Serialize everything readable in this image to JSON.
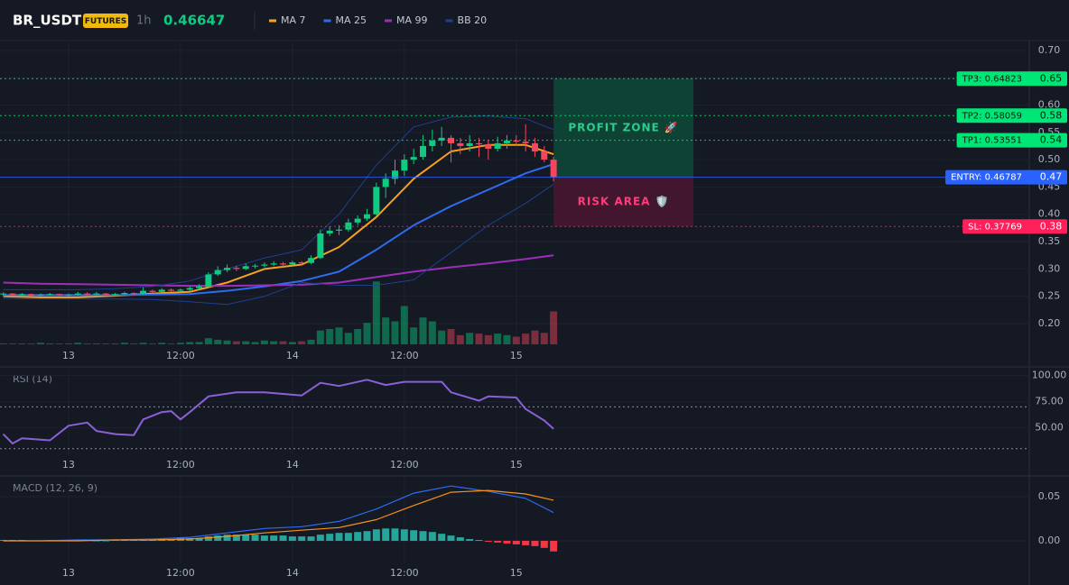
{
  "header": {
    "symbol": "BR_USDT",
    "badge": "FUTURES",
    "interval": "1h",
    "price": 0.46647
  },
  "chart_data": [
    {
      "type": "candlestick",
      "x": [
        -7,
        -6,
        -5,
        -4,
        -3,
        -2,
        -1,
        0,
        1,
        2,
        3,
        4,
        5,
        6,
        7,
        8,
        9,
        10,
        11,
        12,
        13,
        14,
        15,
        16,
        17,
        18,
        19,
        20,
        21,
        22,
        23,
        24,
        25,
        26,
        27,
        28,
        29,
        30,
        31,
        32,
        33,
        34,
        35,
        36,
        37,
        38,
        39,
        40,
        41,
        42,
        43,
        44,
        45,
        46,
        47,
        48,
        49,
        50,
        51,
        52
      ],
      "ohlc": [
        [
          0.254,
          0.257,
          0.251,
          0.255
        ],
        [
          0.255,
          0.256,
          0.25,
          0.252
        ],
        [
          0.252,
          0.256,
          0.25,
          0.254
        ],
        [
          0.254,
          0.255,
          0.249,
          0.251
        ],
        [
          0.251,
          0.255,
          0.25,
          0.253
        ],
        [
          0.253,
          0.256,
          0.251,
          0.254
        ],
        [
          0.254,
          0.255,
          0.25,
          0.252
        ],
        [
          0.252,
          0.255,
          0.25,
          0.253
        ],
        [
          0.253,
          0.258,
          0.251,
          0.255
        ],
        [
          0.255,
          0.257,
          0.252,
          0.254
        ],
        [
          0.254,
          0.258,
          0.252,
          0.255
        ],
        [
          0.255,
          0.256,
          0.251,
          0.253
        ],
        [
          0.253,
          0.256,
          0.251,
          0.254
        ],
        [
          0.254,
          0.258,
          0.252,
          0.256
        ],
        [
          0.256,
          0.257,
          0.252,
          0.254
        ],
        [
          0.254,
          0.266,
          0.253,
          0.26
        ],
        [
          0.26,
          0.262,
          0.256,
          0.258
        ],
        [
          0.258,
          0.265,
          0.257,
          0.262
        ],
        [
          0.262,
          0.264,
          0.258,
          0.26
        ],
        [
          0.26,
          0.264,
          0.258,
          0.262
        ],
        [
          0.262,
          0.268,
          0.26,
          0.265
        ],
        [
          0.265,
          0.272,
          0.262,
          0.268
        ],
        [
          0.268,
          0.294,
          0.266,
          0.29
        ],
        [
          0.29,
          0.305,
          0.287,
          0.298
        ],
        [
          0.298,
          0.308,
          0.294,
          0.302
        ],
        [
          0.302,
          0.306,
          0.296,
          0.3
        ],
        [
          0.3,
          0.31,
          0.298,
          0.305
        ],
        [
          0.305,
          0.309,
          0.301,
          0.306
        ],
        [
          0.306,
          0.312,
          0.303,
          0.308
        ],
        [
          0.308,
          0.314,
          0.305,
          0.31
        ],
        [
          0.31,
          0.313,
          0.304,
          0.308
        ],
        [
          0.308,
          0.315,
          0.306,
          0.312
        ],
        [
          0.312,
          0.314,
          0.307,
          0.311
        ],
        [
          0.311,
          0.325,
          0.309,
          0.32
        ],
        [
          0.32,
          0.372,
          0.318,
          0.365
        ],
        [
          0.365,
          0.378,
          0.36,
          0.37
        ],
        [
          0.37,
          0.38,
          0.362,
          0.372
        ],
        [
          0.372,
          0.392,
          0.368,
          0.385
        ],
        [
          0.385,
          0.398,
          0.38,
          0.392
        ],
        [
          0.392,
          0.41,
          0.388,
          0.4
        ],
        [
          0.4,
          0.458,
          0.398,
          0.45
        ],
        [
          0.45,
          0.475,
          0.43,
          0.465
        ],
        [
          0.465,
          0.5,
          0.455,
          0.48
        ],
        [
          0.48,
          0.51,
          0.47,
          0.5
        ],
        [
          0.5,
          0.52,
          0.492,
          0.505
        ],
        [
          0.505,
          0.545,
          0.5,
          0.525
        ],
        [
          0.525,
          0.555,
          0.515,
          0.535
        ],
        [
          0.535,
          0.56,
          0.525,
          0.54
        ],
        [
          0.54,
          0.545,
          0.495,
          0.53
        ],
        [
          0.53,
          0.54,
          0.51,
          0.525
        ],
        [
          0.525,
          0.545,
          0.515,
          0.53
        ],
        [
          0.53,
          0.54,
          0.505,
          0.528
        ],
        [
          0.528,
          0.535,
          0.5,
          0.52
        ],
        [
          0.52,
          0.542,
          0.515,
          0.53
        ],
        [
          0.53,
          0.545,
          0.52,
          0.535
        ],
        [
          0.535,
          0.545,
          0.525,
          0.533
        ],
        [
          0.533,
          0.565,
          0.515,
          0.53
        ],
        [
          0.53,
          0.54,
          0.505,
          0.515
        ],
        [
          0.515,
          0.525,
          0.495,
          0.5
        ],
        [
          0.5,
          0.505,
          0.46,
          0.468
        ]
      ],
      "volume": [
        1,
        1,
        1,
        1,
        2,
        1,
        1,
        1,
        2,
        1,
        1,
        1,
        1,
        2,
        1,
        2,
        1,
        2,
        1,
        2,
        3,
        3,
        8,
        6,
        5,
        4,
        4,
        3,
        5,
        4,
        4,
        3,
        4,
        6,
        18,
        20,
        22,
        15,
        20,
        28,
        82,
        35,
        30,
        50,
        22,
        35,
        30,
        18,
        20,
        12,
        15,
        14,
        12,
        14,
        12,
        10,
        14,
        18,
        15,
        43
      ],
      "vlim": [
        0,
        100
      ],
      "up_color": "#0ecb81",
      "down_color": "#f6465d",
      "lines": {
        "x": [
          -7,
          -3,
          1,
          5,
          9,
          13,
          17,
          21,
          25,
          29,
          33,
          37,
          41,
          45,
          49,
          52
        ],
        "series": [
          {
            "name": "MA 7",
            "color": "#f7a21b",
            "values": [
              0.25,
              0.248,
              0.248,
              0.251,
              0.255,
              0.258,
              0.275,
              0.3,
              0.308,
              0.34,
              0.395,
              0.465,
              0.515,
              0.527,
              0.527,
              0.51
            ]
          },
          {
            "name": "MA 25",
            "color": "#2f6bf0",
            "values": [
              0.252,
              0.252,
              0.252,
              0.252,
              0.253,
              0.254,
              0.26,
              0.268,
              0.278,
              0.295,
              0.335,
              0.38,
              0.415,
              0.445,
              0.475,
              0.492
            ]
          },
          {
            "name": "MA 99",
            "color": "#9c2fb8",
            "values": [
              0.275,
              0.273,
              0.272,
              0.271,
              0.27,
              0.269,
              0.269,
              0.27,
              0.271,
              0.275,
              0.285,
              0.295,
              0.303,
              0.31,
              0.318,
              0.325
            ]
          },
          {
            "name": "BB 20",
            "color": "#1f3f8f",
            "upper": [
              0.262,
              0.262,
              0.262,
              0.264,
              0.268,
              0.278,
              0.3,
              0.32,
              0.335,
              0.4,
              0.49,
              0.56,
              0.578,
              0.58,
              0.575,
              0.555
            ],
            "lower": [
              0.246,
              0.245,
              0.245,
              0.245,
              0.244,
              0.24,
              0.235,
              0.25,
              0.275,
              0.27,
              0.27,
              0.28,
              0.33,
              0.38,
              0.42,
              0.455
            ]
          }
        ]
      },
      "levels": [
        {
          "label": "TP3: 0.64823",
          "value": 0.64823,
          "axis_label": "0.65",
          "color": "#00e676",
          "text_color": "#0b1a12",
          "dash": true
        },
        {
          "label": "TP2: 0.58059",
          "value": 0.58059,
          "axis_label": "0.58",
          "color": "#00e676",
          "text_color": "#0b1a12",
          "dash": true
        },
        {
          "label": "TP1: 0.53551",
          "value": 0.53551,
          "axis_label": "0.54",
          "color": "#00e676",
          "text_color": "#0b1a12",
          "dash": true
        },
        {
          "label": "ENTRY: 0.46787",
          "value": 0.46787,
          "axis_label": "0.47",
          "color": "#2962ff",
          "text_color": "#ffffff",
          "dash": false
        },
        {
          "label": "SL: 0.37769",
          "value": 0.37769,
          "axis_label": "0.38",
          "color": "#ff1f5a",
          "text_color": "#ffffff",
          "dash": true
        }
      ],
      "zones": [
        {
          "label": "PROFIT ZONE 🚀",
          "from": 0.46787,
          "to": 0.64823,
          "color": "#0d4a38",
          "text_color": "#2ecc8a"
        },
        {
          "label": "RISK AREA 🛡️",
          "from": 0.37769,
          "to": 0.46787,
          "color": "#4a1631",
          "text_color": "#ff3b7a"
        }
      ],
      "zone_x": [
        52,
        67
      ],
      "xlim": [
        -7.35,
        103
      ],
      "xticks": [
        {
          "value": 0,
          "label": "13"
        },
        {
          "value": 12,
          "label": "12:00"
        },
        {
          "value": 24,
          "label": "14"
        },
        {
          "value": 36,
          "label": "12:00"
        },
        {
          "value": 48,
          "label": "15"
        }
      ],
      "ylim": [
        0.162,
        0.718
      ],
      "yticks": [
        {
          "value": 0.2,
          "label": "0.20"
        },
        {
          "value": 0.25,
          "label": "0.25"
        },
        {
          "value": 0.3,
          "label": "0.30"
        },
        {
          "value": 0.35,
          "label": "0.35"
        },
        {
          "value": 0.4,
          "label": "0.40"
        },
        {
          "value": 0.45,
          "label": "0.45"
        },
        {
          "value": 0.5,
          "label": "0.50"
        },
        {
          "value": 0.55,
          "label": "0.55"
        },
        {
          "value": 0.6,
          "label": "0.60"
        },
        {
          "value": 0.65,
          "label": "0.65"
        },
        {
          "value": 0.7,
          "label": "0.70"
        }
      ],
      "grid": true
    },
    {
      "type": "line",
      "title": "RSI (14)",
      "color": "#8b5fd6",
      "x": [
        -7,
        -6,
        -5,
        -2,
        0,
        2,
        3,
        5,
        7,
        8,
        10,
        11,
        12,
        13,
        15,
        18,
        21,
        25,
        27,
        29,
        32,
        34,
        36,
        40,
        41,
        44,
        45,
        48,
        49,
        51,
        52
      ],
      "values": [
        44,
        35,
        40,
        38,
        52,
        55,
        47,
        44,
        43,
        58,
        65,
        66,
        58,
        65,
        80,
        84,
        84,
        81,
        93,
        90,
        96,
        91,
        94,
        94,
        84,
        76,
        80,
        79,
        68,
        57,
        49
      ],
      "levels": [
        70,
        30
      ],
      "xlim": [
        -7.35,
        103
      ],
      "xticks": [
        {
          "value": 0,
          "label": "13"
        },
        {
          "value": 12,
          "label": "12:00"
        },
        {
          "value": 24,
          "label": "14"
        },
        {
          "value": 36,
          "label": "12:00"
        },
        {
          "value": 48,
          "label": "15"
        }
      ],
      "ylim": [
        23.8,
        105.7
      ],
      "yticks": [
        {
          "value": 50,
          "label": "50.00"
        },
        {
          "value": 75,
          "label": "75.00"
        },
        {
          "value": 100,
          "label": "100.00"
        }
      ],
      "grid": true
    },
    {
      "type": "macd",
      "title": "MACD (12, 26, 9)",
      "x": [
        -7,
        -3,
        1,
        5,
        9,
        13,
        17,
        21,
        25,
        29,
        33,
        37,
        41,
        45,
        49,
        52
      ],
      "series": [
        {
          "color": "#2f6bf0",
          "values": [
            0.0,
            0.0,
            0.001,
            0.001,
            0.002,
            0.004,
            0.009,
            0.014,
            0.016,
            0.022,
            0.036,
            0.054,
            0.062,
            0.056,
            0.048,
            0.032
          ]
        },
        {
          "color": "#f7931a",
          "values": [
            0.0,
            0.0,
            0.0,
            0.001,
            0.001,
            0.002,
            0.005,
            0.009,
            0.012,
            0.015,
            0.024,
            0.04,
            0.055,
            0.057,
            0.053,
            0.046
          ]
        }
      ],
      "hist_x": [
        -7,
        -6,
        -5,
        -4,
        -3,
        -2,
        -1,
        0,
        1,
        2,
        3,
        4,
        5,
        6,
        7,
        8,
        9,
        10,
        11,
        12,
        13,
        14,
        15,
        16,
        17,
        18,
        19,
        20,
        21,
        22,
        23,
        24,
        25,
        26,
        27,
        28,
        29,
        30,
        31,
        32,
        33,
        34,
        35,
        36,
        37,
        38,
        39,
        40,
        41,
        42,
        43,
        44,
        45,
        46,
        47,
        48,
        49,
        50,
        51,
        52
      ],
      "histogram": [
        0.001,
        0.001,
        0.001,
        0,
        0,
        0.001,
        0,
        0,
        0.001,
        0.001,
        0,
        0,
        0.001,
        0.001,
        0.001,
        0.002,
        0.002,
        0.002,
        0.002,
        0.003,
        0.003,
        0.003,
        0.005,
        0.006,
        0.007,
        0.007,
        0.007,
        0.007,
        0.006,
        0.006,
        0.006,
        0.005,
        0.005,
        0.005,
        0.007,
        0.008,
        0.009,
        0.009,
        0.01,
        0.011,
        0.013,
        0.014,
        0.014,
        0.013,
        0.012,
        0.011,
        0.01,
        0.008,
        0.006,
        0.004,
        0.002,
        0.001,
        -0.001,
        -0.002,
        -0.003,
        -0.004,
        -0.005,
        -0.006,
        -0.008,
        -0.012
      ],
      "hist_colors": [
        "#26a69a",
        "#f23645"
      ],
      "xlim": [
        -7.35,
        103
      ],
      "xticks": [
        {
          "value": 0,
          "label": "13"
        },
        {
          "value": 12,
          "label": "12:00"
        },
        {
          "value": 24,
          "label": "14"
        },
        {
          "value": 36,
          "label": "12:00"
        },
        {
          "value": 48,
          "label": "15"
        }
      ],
      "ylim": [
        -0.0255,
        0.0714
      ],
      "yticks": [
        {
          "value": 0,
          "label": "0.00"
        },
        0.05
      ],
      "grid": true
    }
  ]
}
